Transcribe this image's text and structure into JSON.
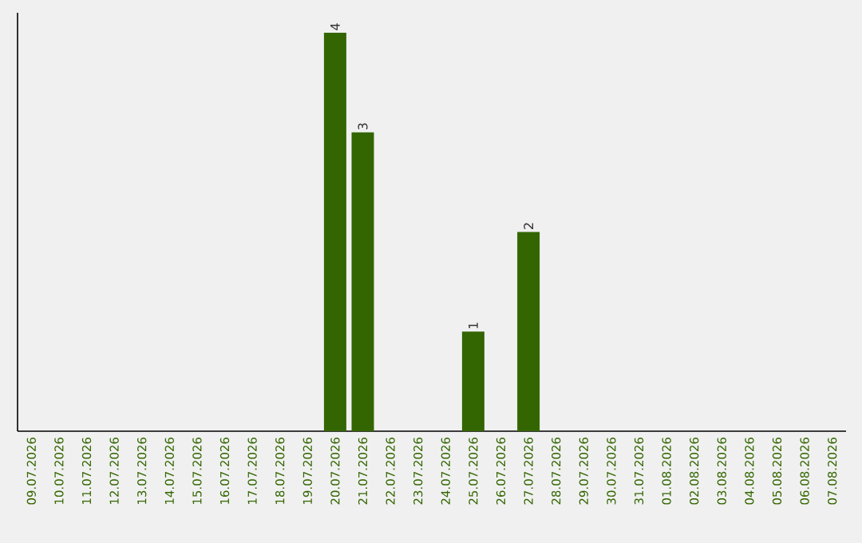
{
  "chart_data": {
    "type": "bar",
    "categories": [
      "09.07.2026",
      "10.07.2026",
      "11.07.2026",
      "12.07.2026",
      "13.07.2026",
      "14.07.2026",
      "15.07.2026",
      "16.07.2026",
      "17.07.2026",
      "18.07.2026",
      "19.07.2026",
      "20.07.2026",
      "21.07.2026",
      "22.07.2026",
      "23.07.2026",
      "24.07.2026",
      "25.07.2026",
      "26.07.2026",
      "27.07.2026",
      "28.07.2026",
      "29.07.2026",
      "30.07.2026",
      "31.07.2026",
      "01.08.2026",
      "02.08.2026",
      "03.08.2026",
      "04.08.2026",
      "05.08.2026",
      "06.08.2026",
      "07.08.2026"
    ],
    "values": [
      0,
      0,
      0,
      0,
      0,
      0,
      0,
      0,
      0,
      0,
      0,
      4,
      3,
      0,
      0,
      0,
      1,
      0,
      2,
      0,
      0,
      0,
      0,
      0,
      0,
      0,
      0,
      0,
      0,
      0
    ],
    "value_labels": [
      null,
      null,
      null,
      null,
      null,
      null,
      null,
      null,
      null,
      null,
      null,
      "4",
      "3",
      null,
      null,
      null,
      "1",
      null,
      "2",
      null,
      null,
      null,
      null,
      null,
      null,
      null,
      null,
      null,
      null,
      null
    ],
    "color": "#336600",
    "ylim": [
      0,
      4.2
    ],
    "tick_labels": "x"
  }
}
